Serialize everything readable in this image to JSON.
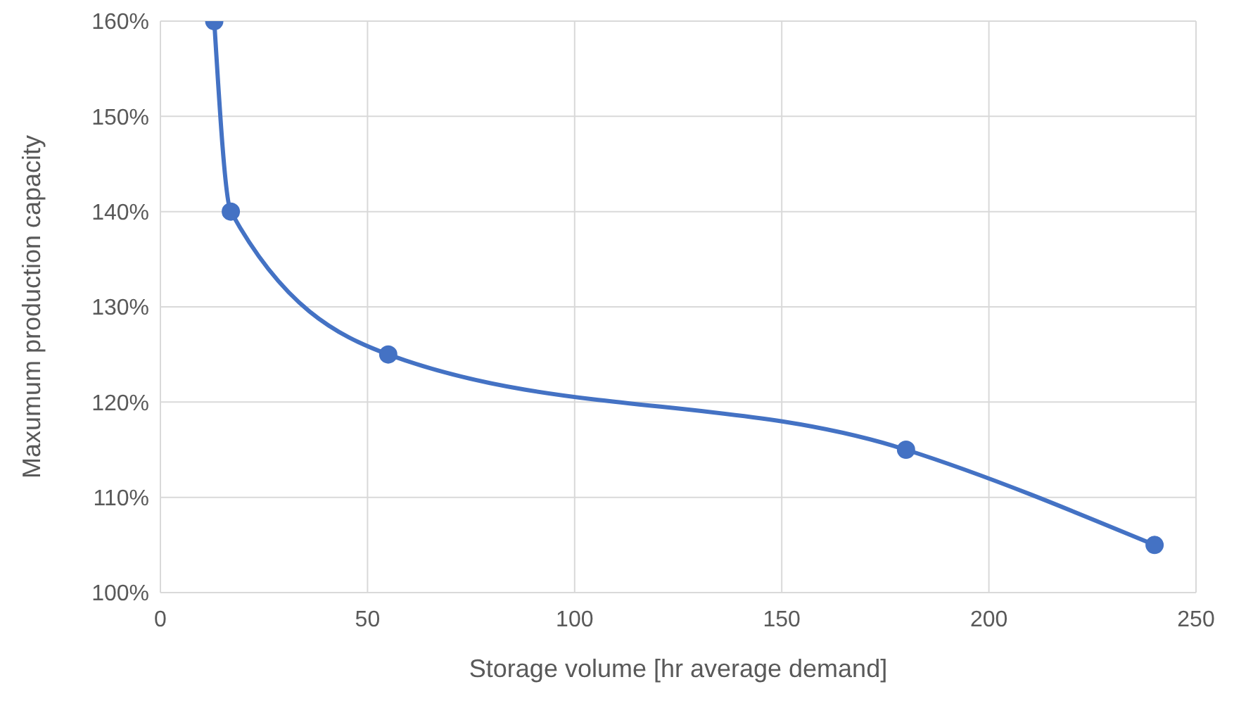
{
  "chart_data": {
    "type": "line",
    "xlabel": "Storage volume [hr average demand]",
    "ylabel": "Maxumum production capacity",
    "series": [
      {
        "color": "#4472c4",
        "x": [
          13,
          17,
          55,
          180,
          240
        ],
        "values": [
          160,
          140,
          125,
          115,
          105
        ]
      }
    ],
    "xlim": [
      0,
      250
    ],
    "xticks": [
      0,
      50,
      100,
      150,
      200,
      250
    ],
    "ylim": [
      100,
      160
    ],
    "yticks": [
      {
        "value": 100,
        "label": "100%"
      },
      {
        "value": 110,
        "label": "110%"
      },
      {
        "value": 120,
        "label": "120%"
      },
      {
        "value": 130,
        "label": "130%"
      },
      {
        "value": 140,
        "label": "140%"
      },
      {
        "value": 150,
        "label": "150%"
      },
      {
        "value": 160,
        "label": "160%"
      }
    ],
    "grid": true,
    "marker": "circle",
    "line_style": "solid",
    "legend": false
  }
}
